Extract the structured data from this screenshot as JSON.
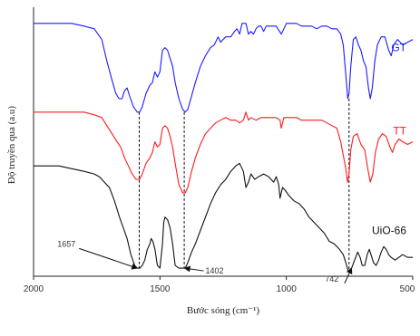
{
  "chart_data": {
    "type": "line",
    "title": "",
    "xlabel": "Bước sóng (cm⁻¹)",
    "ylabel": "Độ truyền qua (a.u)",
    "xlim": [
      2000,
      500
    ],
    "ylim": [
      0,
      100
    ],
    "x_reversed": true,
    "y_ticks_visible": false,
    "grid": false,
    "x_ticks": [
      {
        "value": 2000,
        "label": "2000"
      },
      {
        "value": 1500,
        "label": "1500"
      },
      {
        "value": 1000,
        "label": "1000"
      },
      {
        "value": 500,
        "label": "500"
      }
    ],
    "series": [
      {
        "name": "GT",
        "color": "#1a1aff",
        "points": [
          [
            2000,
            94
          ],
          [
            1950,
            94
          ],
          [
            1900,
            94
          ],
          [
            1850,
            94
          ],
          [
            1800,
            93
          ],
          [
            1760,
            92
          ],
          [
            1730,
            88
          ],
          [
            1710,
            80
          ],
          [
            1690,
            73
          ],
          [
            1675,
            68
          ],
          [
            1662,
            66
          ],
          [
            1650,
            66
          ],
          [
            1640,
            69
          ],
          [
            1630,
            70
          ],
          [
            1620,
            67
          ],
          [
            1605,
            63
          ],
          [
            1590,
            61
          ],
          [
            1580,
            61
          ],
          [
            1570,
            63
          ],
          [
            1555,
            68
          ],
          [
            1540,
            71
          ],
          [
            1530,
            72
          ],
          [
            1520,
            76
          ],
          [
            1510,
            74
          ],
          [
            1500,
            76
          ],
          [
            1490,
            84
          ],
          [
            1480,
            85
          ],
          [
            1470,
            84
          ],
          [
            1460,
            81
          ],
          [
            1450,
            78
          ],
          [
            1440,
            72
          ],
          [
            1425,
            66
          ],
          [
            1410,
            62
          ],
          [
            1400,
            61
          ],
          [
            1390,
            62
          ],
          [
            1375,
            67
          ],
          [
            1360,
            72
          ],
          [
            1340,
            78
          ],
          [
            1320,
            82
          ],
          [
            1300,
            85
          ],
          [
            1285,
            86
          ],
          [
            1270,
            89
          ],
          [
            1260,
            87
          ],
          [
            1250,
            88
          ],
          [
            1240,
            89
          ],
          [
            1220,
            89
          ],
          [
            1205,
            91
          ],
          [
            1195,
            92
          ],
          [
            1185,
            90
          ],
          [
            1175,
            94
          ],
          [
            1160,
            94
          ],
          [
            1150,
            90
          ],
          [
            1140,
            91
          ],
          [
            1130,
            90
          ],
          [
            1120,
            92
          ],
          [
            1110,
            93
          ],
          [
            1100,
            93
          ],
          [
            1090,
            91
          ],
          [
            1080,
            93
          ],
          [
            1060,
            93
          ],
          [
            1040,
            93
          ],
          [
            1020,
            90
          ],
          [
            1010,
            92
          ],
          [
            1000,
            94
          ],
          [
            980,
            94
          ],
          [
            960,
            94
          ],
          [
            940,
            93
          ],
          [
            920,
            93
          ],
          [
            900,
            93
          ],
          [
            880,
            92
          ],
          [
            860,
            93
          ],
          [
            840,
            93
          ],
          [
            820,
            92
          ],
          [
            800,
            92
          ],
          [
            785,
            90
          ],
          [
            775,
            86
          ],
          [
            765,
            75
          ],
          [
            757,
            66
          ],
          [
            752,
            68
          ],
          [
            745,
            78
          ],
          [
            735,
            88
          ],
          [
            725,
            89
          ],
          [
            715,
            86
          ],
          [
            705,
            84
          ],
          [
            695,
            80
          ],
          [
            685,
            78
          ],
          [
            675,
            70
          ],
          [
            668,
            66
          ],
          [
            660,
            70
          ],
          [
            650,
            80
          ],
          [
            640,
            86
          ],
          [
            625,
            89
          ],
          [
            610,
            89
          ],
          [
            595,
            84
          ],
          [
            585,
            82
          ],
          [
            575,
            86
          ],
          [
            560,
            88
          ],
          [
            540,
            86
          ],
          [
            520,
            87
          ],
          [
            500,
            88
          ]
        ]
      },
      {
        "name": "TT",
        "color": "#ff1a1a",
        "points": [
          [
            2000,
            61
          ],
          [
            1950,
            61
          ],
          [
            1900,
            61
          ],
          [
            1850,
            61
          ],
          [
            1800,
            61
          ],
          [
            1760,
            60
          ],
          [
            1730,
            59
          ],
          [
            1710,
            56
          ],
          [
            1690,
            53
          ],
          [
            1670,
            50
          ],
          [
            1655,
            48
          ],
          [
            1640,
            44
          ],
          [
            1625,
            41
          ],
          [
            1610,
            38
          ],
          [
            1595,
            36
          ],
          [
            1580,
            36
          ],
          [
            1570,
            38
          ],
          [
            1555,
            42
          ],
          [
            1540,
            44
          ],
          [
            1530,
            46
          ],
          [
            1520,
            50
          ],
          [
            1510,
            48
          ],
          [
            1500,
            49
          ],
          [
            1490,
            55
          ],
          [
            1480,
            56
          ],
          [
            1470,
            55
          ],
          [
            1460,
            52
          ],
          [
            1450,
            48
          ],
          [
            1440,
            42
          ],
          [
            1425,
            34
          ],
          [
            1410,
            31
          ],
          [
            1400,
            31
          ],
          [
            1390,
            33
          ],
          [
            1375,
            39
          ],
          [
            1360,
            44
          ],
          [
            1340,
            49
          ],
          [
            1320,
            53
          ],
          [
            1300,
            55
          ],
          [
            1280,
            57
          ],
          [
            1260,
            58
          ],
          [
            1240,
            59
          ],
          [
            1220,
            58
          ],
          [
            1200,
            58
          ],
          [
            1185,
            57
          ],
          [
            1170,
            58
          ],
          [
            1160,
            61
          ],
          [
            1150,
            58
          ],
          [
            1140,
            59
          ],
          [
            1120,
            58
          ],
          [
            1100,
            59
          ],
          [
            1080,
            59
          ],
          [
            1060,
            59
          ],
          [
            1040,
            59
          ],
          [
            1025,
            58
          ],
          [
            1020,
            55
          ],
          [
            1015,
            57
          ],
          [
            1010,
            59
          ],
          [
            1000,
            59
          ],
          [
            980,
            59
          ],
          [
            960,
            59
          ],
          [
            940,
            58
          ],
          [
            920,
            58
          ],
          [
            900,
            58
          ],
          [
            880,
            58
          ],
          [
            860,
            58
          ],
          [
            840,
            57
          ],
          [
            820,
            56
          ],
          [
            800,
            55
          ],
          [
            785,
            50
          ],
          [
            775,
            45
          ],
          [
            765,
            40
          ],
          [
            758,
            35
          ],
          [
            752,
            38
          ],
          [
            745,
            47
          ],
          [
            735,
            52
          ],
          [
            720,
            53
          ],
          [
            705,
            49
          ],
          [
            690,
            47
          ],
          [
            678,
            40
          ],
          [
            668,
            35
          ],
          [
            658,
            38
          ],
          [
            648,
            46
          ],
          [
            635,
            51
          ],
          [
            620,
            53
          ],
          [
            605,
            52
          ],
          [
            590,
            48
          ],
          [
            580,
            46
          ],
          [
            570,
            49
          ],
          [
            555,
            51
          ],
          [
            540,
            50
          ],
          [
            520,
            49
          ],
          [
            500,
            50
          ]
        ]
      },
      {
        "name": "UiO-66",
        "color": "#111111",
        "points": [
          [
            2000,
            41
          ],
          [
            1950,
            41
          ],
          [
            1900,
            41
          ],
          [
            1850,
            40
          ],
          [
            1800,
            39
          ],
          [
            1760,
            38
          ],
          [
            1740,
            37
          ],
          [
            1720,
            35
          ],
          [
            1700,
            33
          ],
          [
            1680,
            28
          ],
          [
            1660,
            22
          ],
          [
            1645,
            18
          ],
          [
            1630,
            14
          ],
          [
            1615,
            8
          ],
          [
            1600,
            4
          ],
          [
            1590,
            3
          ],
          [
            1580,
            3
          ],
          [
            1570,
            4
          ],
          [
            1560,
            6
          ],
          [
            1550,
            10
          ],
          [
            1540,
            12
          ],
          [
            1535,
            14
          ],
          [
            1528,
            13
          ],
          [
            1520,
            10
          ],
          [
            1510,
            4
          ],
          [
            1500,
            3
          ],
          [
            1490,
            12
          ],
          [
            1485,
            20
          ],
          [
            1480,
            22
          ],
          [
            1470,
            21
          ],
          [
            1460,
            18
          ],
          [
            1450,
            12
          ],
          [
            1440,
            4
          ],
          [
            1425,
            3
          ],
          [
            1410,
            3
          ],
          [
            1400,
            3
          ],
          [
            1390,
            5
          ],
          [
            1375,
            9
          ],
          [
            1360,
            12
          ],
          [
            1340,
            17
          ],
          [
            1320,
            22
          ],
          [
            1300,
            27
          ],
          [
            1280,
            31
          ],
          [
            1260,
            34
          ],
          [
            1240,
            36
          ],
          [
            1220,
            39
          ],
          [
            1200,
            41
          ],
          [
            1185,
            42
          ],
          [
            1170,
            39
          ],
          [
            1160,
            33
          ],
          [
            1150,
            35
          ],
          [
            1140,
            38
          ],
          [
            1125,
            36
          ],
          [
            1110,
            37
          ],
          [
            1090,
            38
          ],
          [
            1070,
            37
          ],
          [
            1060,
            36
          ],
          [
            1050,
            35
          ],
          [
            1040,
            37
          ],
          [
            1030,
            34
          ],
          [
            1025,
            29
          ],
          [
            1020,
            31
          ],
          [
            1015,
            33
          ],
          [
            1005,
            32
          ],
          [
            990,
            30
          ],
          [
            970,
            28
          ],
          [
            950,
            27
          ],
          [
            930,
            25
          ],
          [
            910,
            22
          ],
          [
            890,
            20
          ],
          [
            870,
            18
          ],
          [
            850,
            16
          ],
          [
            830,
            13
          ],
          [
            810,
            12
          ],
          [
            790,
            10
          ],
          [
            775,
            8
          ],
          [
            765,
            5
          ],
          [
            755,
            2
          ],
          [
            748,
            2
          ],
          [
            742,
            3
          ],
          [
            730,
            6
          ],
          [
            718,
            9
          ],
          [
            708,
            7
          ],
          [
            700,
            4
          ],
          [
            690,
            4
          ],
          [
            680,
            8
          ],
          [
            672,
            10
          ],
          [
            665,
            8
          ],
          [
            655,
            5
          ],
          [
            645,
            4
          ],
          [
            635,
            6
          ],
          [
            625,
            9
          ],
          [
            615,
            11
          ],
          [
            605,
            10
          ],
          [
            595,
            8
          ],
          [
            585,
            7
          ],
          [
            570,
            6
          ],
          [
            555,
            7
          ],
          [
            540,
            8
          ],
          [
            520,
            7
          ],
          [
            500,
            7
          ]
        ]
      }
    ],
    "reference_lines": [
      {
        "x": 1582,
        "y_top": 61,
        "y_bottom": 3
      },
      {
        "x": 1404,
        "y_top": 61,
        "y_bottom": 3
      },
      {
        "x": 752,
        "y_top": 66,
        "y_bottom": 2
      }
    ],
    "annotations": [
      {
        "text": "1657",
        "x": 1870,
        "y": 12,
        "arrow_to": [
          1590,
          3
        ],
        "anchor": "middle"
      },
      {
        "text": "1402",
        "x": 1320,
        "y": 2,
        "arrow_to": [
          1402,
          3
        ],
        "anchor": "start"
      },
      {
        "text": "742",
        "x": 820,
        "y": -1,
        "arrow_to": [
          742,
          3
        ],
        "anchor": "middle"
      }
    ]
  }
}
